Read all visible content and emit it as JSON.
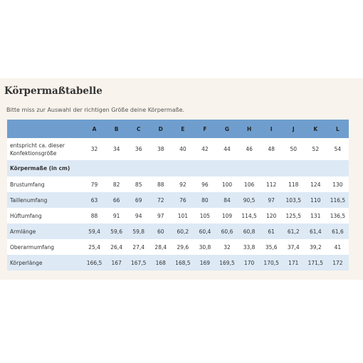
{
  "title": "Körpermaßtabelle",
  "subtitle": "Bitte miss zur Auswahl der richtigen Größe deine Körpermaße.",
  "table": {
    "sizes": [
      "A",
      "B",
      "C",
      "D",
      "E",
      "F",
      "G",
      "H",
      "I",
      "J",
      "K",
      "L"
    ],
    "konfektion": {
      "label": "entspricht ca. dieser Konfektionsgröße",
      "values": [
        "32",
        "34",
        "36",
        "38",
        "40",
        "42",
        "44",
        "46",
        "48",
        "50",
        "52",
        "54"
      ]
    },
    "section_label": "Körpermaße (in cm)",
    "rows": [
      {
        "label": "Brustumfang",
        "values": [
          "79",
          "82",
          "85",
          "88",
          "92",
          "96",
          "100",
          "106",
          "112",
          "118",
          "124",
          "130"
        ]
      },
      {
        "label": "Taillenumfang",
        "values": [
          "63",
          "66",
          "69",
          "72",
          "76",
          "80",
          "84",
          "90,5",
          "97",
          "103,5",
          "110",
          "116,5"
        ]
      },
      {
        "label": "Hüftumfang",
        "values": [
          "88",
          "91",
          "94",
          "97",
          "101",
          "105",
          "109",
          "114,5",
          "120",
          "125,5",
          "131",
          "136,5"
        ]
      },
      {
        "label": "Armlänge",
        "values": [
          "59,4",
          "59,6",
          "59,8",
          "60",
          "60,2",
          "60,4",
          "60,6",
          "60,8",
          "61",
          "61,2",
          "61,4",
          "61,6"
        ]
      },
      {
        "label": "Oberarmumfang",
        "values": [
          "25,4",
          "26,4",
          "27,4",
          "28,4",
          "29,6",
          "30,8",
          "32",
          "33,8",
          "35,6",
          "37,4",
          "39,2",
          "41"
        ]
      },
      {
        "label": "Körperlänge",
        "values": [
          "166,5",
          "167",
          "167,5",
          "168",
          "168,5",
          "169",
          "169,5",
          "170",
          "170,5",
          "171",
          "171,5",
          "172"
        ]
      }
    ]
  },
  "colors": {
    "header_bg": "#6f9ece",
    "row_tint": "#dde9f5",
    "panel_bg": "#f8f3ec"
  }
}
